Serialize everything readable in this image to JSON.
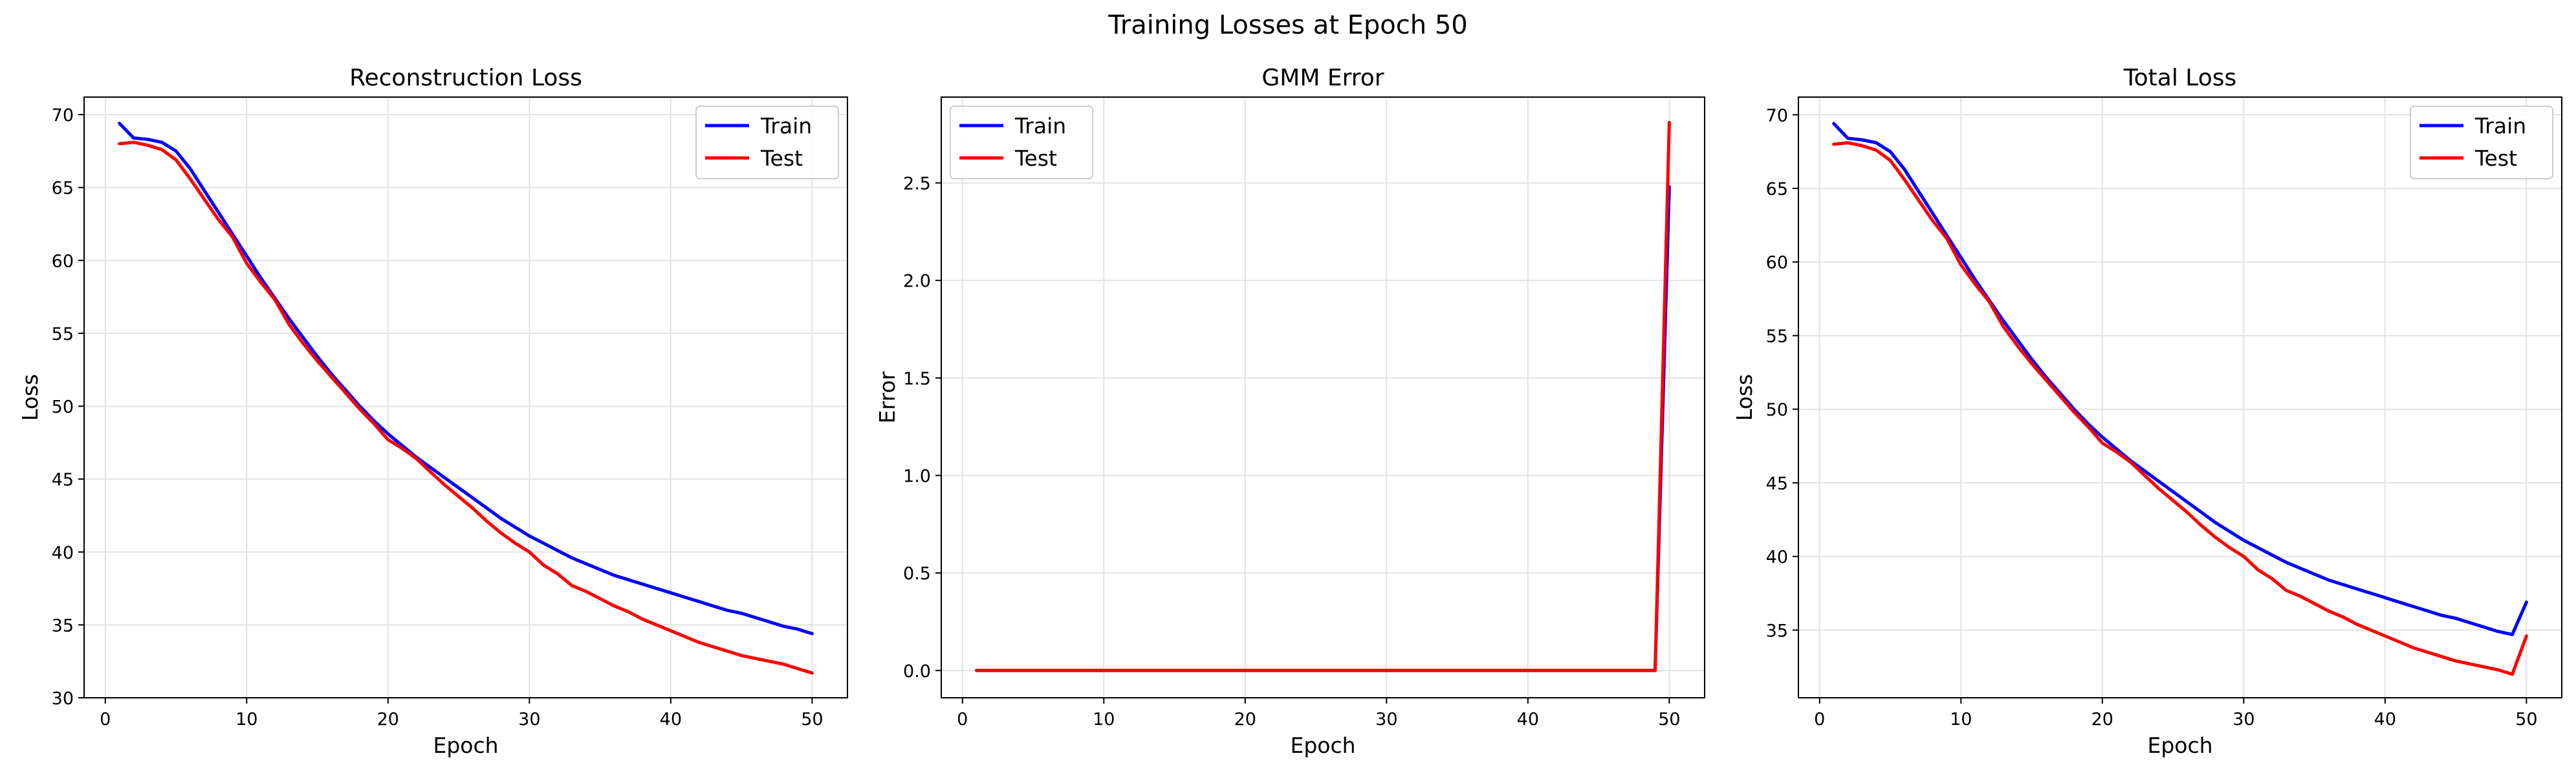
{
  "suptitle": "Training Losses at Epoch 50",
  "colors": {
    "train": "#0000ff",
    "test": "#ff0000",
    "grid": "#e3e3e3",
    "axis": "#000000"
  },
  "chart_data": [
    {
      "type": "line",
      "title": "Reconstruction Loss",
      "xlabel": "Epoch",
      "ylabel": "Loss",
      "xlim": [
        -1.5,
        52.5
      ],
      "ylim": [
        30.0,
        71.2
      ],
      "xticks": [
        0,
        10,
        20,
        30,
        40,
        50
      ],
      "xtick_labels": [
        "0",
        "10",
        "20",
        "30",
        "40",
        "50"
      ],
      "yticks": [
        30,
        35,
        40,
        45,
        50,
        55,
        60,
        65,
        70
      ],
      "ytick_labels": [
        "30",
        "35",
        "40",
        "45",
        "50",
        "55",
        "60",
        "65",
        "70"
      ],
      "grid": true,
      "legend": "upper right",
      "x": [
        1,
        2,
        3,
        4,
        5,
        6,
        7,
        8,
        9,
        10,
        11,
        12,
        13,
        14,
        15,
        16,
        17,
        18,
        19,
        20,
        21,
        22,
        23,
        24,
        25,
        26,
        27,
        28,
        29,
        30,
        31,
        32,
        33,
        34,
        35,
        36,
        37,
        38,
        39,
        40,
        41,
        42,
        43,
        44,
        45,
        46,
        47,
        48,
        49,
        50
      ],
      "series": [
        {
          "name": "Train",
          "color": "#0000ff",
          "values": [
            69.4,
            68.4,
            68.3,
            68.1,
            67.5,
            66.3,
            64.8,
            63.3,
            61.8,
            60.3,
            58.8,
            57.4,
            56.0,
            54.7,
            53.4,
            52.2,
            51.1,
            50.0,
            49.0,
            48.1,
            47.3,
            46.5,
            45.8,
            45.1,
            44.4,
            43.7,
            43.0,
            42.3,
            41.7,
            41.1,
            40.6,
            40.1,
            39.6,
            39.2,
            38.8,
            38.4,
            38.1,
            37.8,
            37.5,
            37.2,
            36.9,
            36.6,
            36.3,
            36.0,
            35.8,
            35.5,
            35.2,
            34.9,
            34.7,
            34.4
          ]
        },
        {
          "name": "Test",
          "color": "#ff0000",
          "values": [
            68.0,
            68.1,
            67.9,
            67.6,
            66.9,
            65.6,
            64.2,
            62.8,
            61.6,
            59.8,
            58.5,
            57.3,
            55.6,
            54.3,
            53.1,
            52.0,
            50.9,
            49.8,
            48.8,
            47.7,
            47.1,
            46.4,
            45.5,
            44.6,
            43.8,
            43.0,
            42.1,
            41.3,
            40.6,
            40.0,
            39.1,
            38.5,
            37.7,
            37.3,
            36.8,
            36.3,
            35.9,
            35.4,
            35.0,
            34.6,
            34.2,
            33.8,
            33.5,
            33.2,
            32.9,
            32.7,
            32.5,
            32.3,
            32.0,
            31.7
          ]
        }
      ]
    },
    {
      "type": "line",
      "title": "GMM Error",
      "xlabel": "Epoch",
      "ylabel": "Error",
      "xlim": [
        -1.5,
        52.5
      ],
      "ylim": [
        -0.14,
        2.94
      ],
      "xticks": [
        0,
        10,
        20,
        30,
        40,
        50
      ],
      "xtick_labels": [
        "0",
        "10",
        "20",
        "30",
        "40",
        "50"
      ],
      "yticks": [
        0.0,
        0.5,
        1.0,
        1.5,
        2.0,
        2.5
      ],
      "ytick_labels": [
        "0.0",
        "0.5",
        "1.0",
        "1.5",
        "2.0",
        "2.5"
      ],
      "grid": true,
      "legend": "upper left",
      "x": [
        1,
        2,
        3,
        4,
        5,
        6,
        7,
        8,
        9,
        10,
        11,
        12,
        13,
        14,
        15,
        16,
        17,
        18,
        19,
        20,
        21,
        22,
        23,
        24,
        25,
        26,
        27,
        28,
        29,
        30,
        31,
        32,
        33,
        34,
        35,
        36,
        37,
        38,
        39,
        40,
        41,
        42,
        43,
        44,
        45,
        46,
        47,
        48,
        49,
        50
      ],
      "series": [
        {
          "name": "Train",
          "color": "#0000ff",
          "values": [
            0,
            0,
            0,
            0,
            0,
            0,
            0,
            0,
            0,
            0,
            0,
            0,
            0,
            0,
            0,
            0,
            0,
            0,
            0,
            0,
            0,
            0,
            0,
            0,
            0,
            0,
            0,
            0,
            0,
            0,
            0,
            0,
            0,
            0,
            0,
            0,
            0,
            0,
            0,
            0,
            0,
            0,
            0,
            0,
            0,
            0,
            0,
            0,
            0,
            2.48
          ]
        },
        {
          "name": "Test",
          "color": "#ff0000",
          "values": [
            0,
            0,
            0,
            0,
            0,
            0,
            0,
            0,
            0,
            0,
            0,
            0,
            0,
            0,
            0,
            0,
            0,
            0,
            0,
            0,
            0,
            0,
            0,
            0,
            0,
            0,
            0,
            0,
            0,
            0,
            0,
            0,
            0,
            0,
            0,
            0,
            0,
            0,
            0,
            0,
            0,
            0,
            0,
            0,
            0,
            0,
            0,
            0,
            0,
            2.81
          ]
        }
      ]
    },
    {
      "type": "line",
      "title": "Total Loss",
      "xlabel": "Epoch",
      "ylabel": "Loss",
      "xlim": [
        -1.5,
        52.5
      ],
      "ylim": [
        30.4,
        71.2
      ],
      "xticks": [
        0,
        10,
        20,
        30,
        40,
        50
      ],
      "xtick_labels": [
        "0",
        "10",
        "20",
        "30",
        "40",
        "50"
      ],
      "yticks": [
        35,
        40,
        45,
        50,
        55,
        60,
        65,
        70
      ],
      "ytick_labels": [
        "35",
        "40",
        "45",
        "50",
        "55",
        "60",
        "65",
        "70"
      ],
      "grid": true,
      "legend": "upper right",
      "x": [
        1,
        2,
        3,
        4,
        5,
        6,
        7,
        8,
        9,
        10,
        11,
        12,
        13,
        14,
        15,
        16,
        17,
        18,
        19,
        20,
        21,
        22,
        23,
        24,
        25,
        26,
        27,
        28,
        29,
        30,
        31,
        32,
        33,
        34,
        35,
        36,
        37,
        38,
        39,
        40,
        41,
        42,
        43,
        44,
        45,
        46,
        47,
        48,
        49,
        50
      ],
      "series": [
        {
          "name": "Train",
          "color": "#0000ff",
          "values": [
            69.4,
            68.4,
            68.3,
            68.1,
            67.5,
            66.3,
            64.8,
            63.3,
            61.8,
            60.3,
            58.8,
            57.4,
            56.0,
            54.7,
            53.4,
            52.2,
            51.1,
            50.0,
            49.0,
            48.1,
            47.3,
            46.5,
            45.8,
            45.1,
            44.4,
            43.7,
            43.0,
            42.3,
            41.7,
            41.1,
            40.6,
            40.1,
            39.6,
            39.2,
            38.8,
            38.4,
            38.1,
            37.8,
            37.5,
            37.2,
            36.9,
            36.6,
            36.3,
            36.0,
            35.8,
            35.5,
            35.2,
            34.9,
            34.7,
            36.9
          ]
        },
        {
          "name": "Test",
          "color": "#ff0000",
          "values": [
            68.0,
            68.1,
            67.9,
            67.6,
            66.9,
            65.6,
            64.2,
            62.8,
            61.6,
            59.8,
            58.5,
            57.3,
            55.6,
            54.3,
            53.1,
            52.0,
            50.9,
            49.8,
            48.8,
            47.7,
            47.1,
            46.4,
            45.5,
            44.6,
            43.8,
            43.0,
            42.1,
            41.3,
            40.6,
            40.0,
            39.1,
            38.5,
            37.7,
            37.3,
            36.8,
            36.3,
            35.9,
            35.4,
            35.0,
            34.6,
            34.2,
            33.8,
            33.5,
            33.2,
            32.9,
            32.7,
            32.5,
            32.3,
            32.0,
            34.6
          ]
        }
      ]
    }
  ]
}
